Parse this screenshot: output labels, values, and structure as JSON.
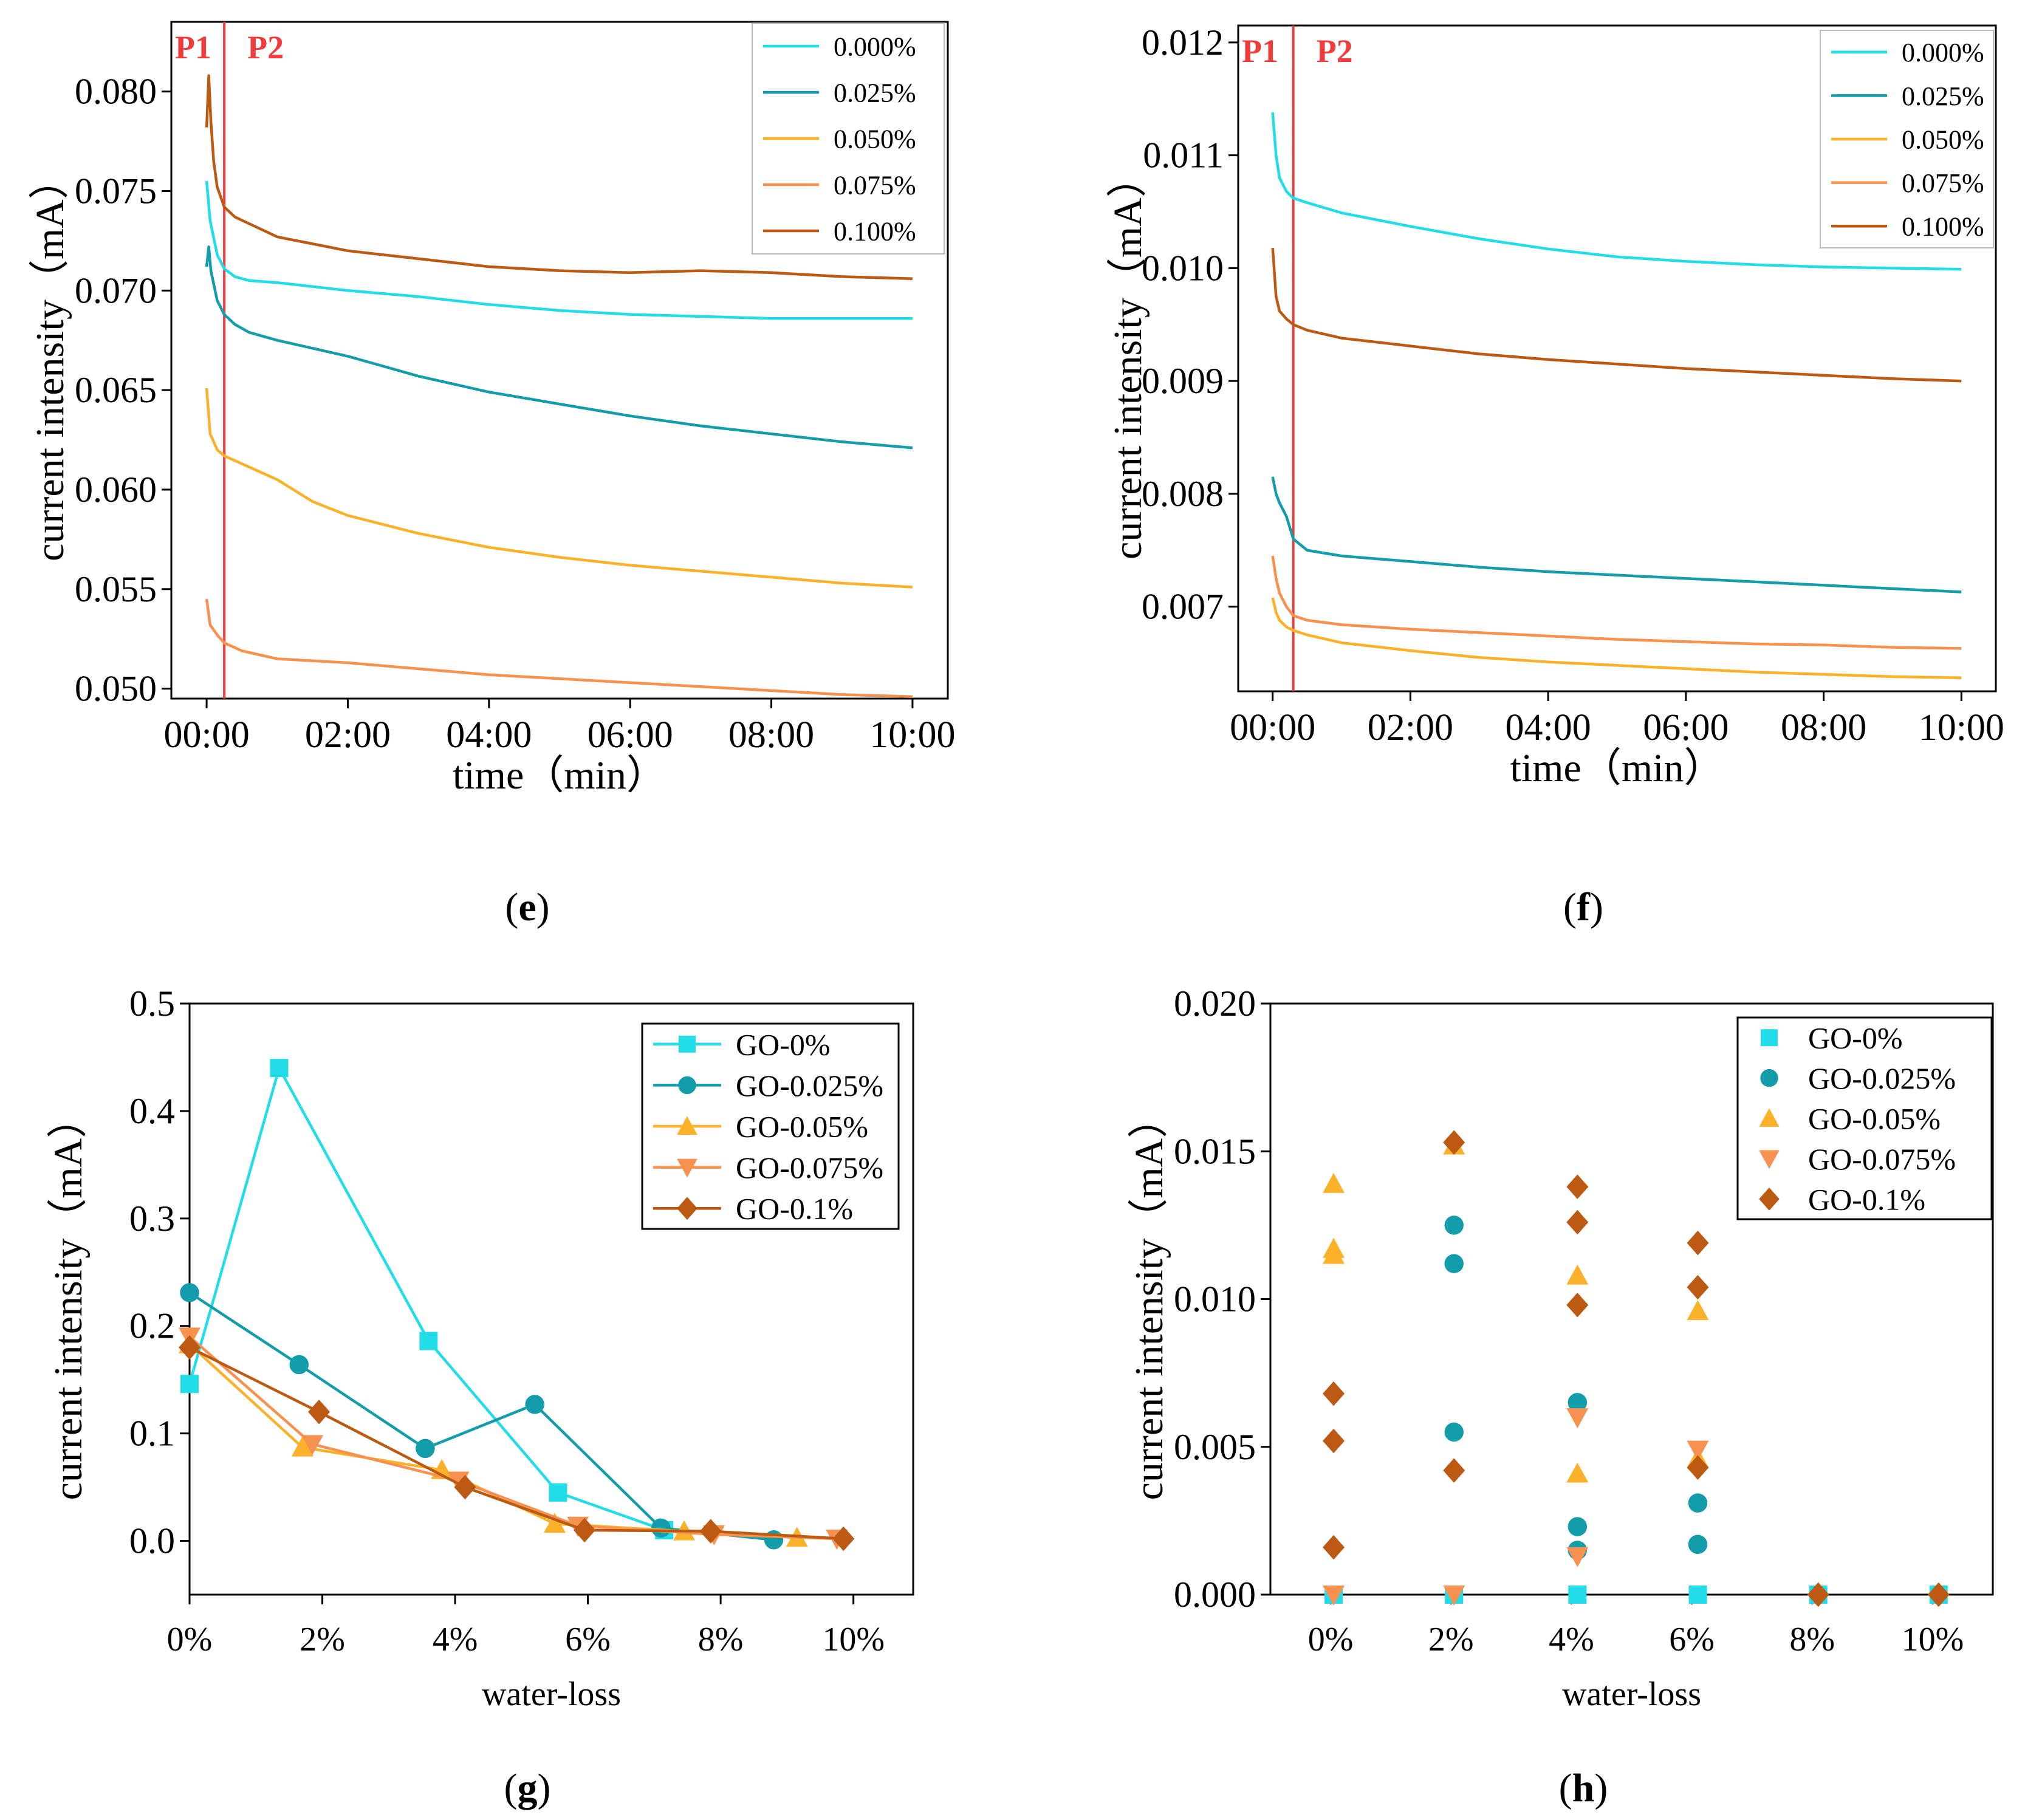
{
  "captions": {
    "e": "e",
    "f": "f",
    "g": "g",
    "h": "h"
  },
  "colors": {
    "c0": "#22DDE8",
    "c025": "#139CA9",
    "c05": "#FBB22A",
    "c075": "#F69150",
    "c1": "#BC5A13",
    "marker_line": "#EE3B3B"
  },
  "chart_data": [
    {
      "id": "e",
      "type": "line",
      "xlabel": "time（min）",
      "ylabel": "current intensity（mA）",
      "xlim": [
        -0.5,
        10.5
      ],
      "ylim": [
        0.0495,
        0.0835
      ],
      "xticks": [
        0,
        2,
        4,
        6,
        8,
        10
      ],
      "xtick_labels": [
        "00:00",
        "02:00",
        "04:00",
        "06:00",
        "08:00",
        "10:00"
      ],
      "yticks": [
        0.05,
        0.055,
        0.06,
        0.065,
        0.07,
        0.075,
        0.08
      ],
      "ytick_labels": [
        "0.050",
        "0.055",
        "0.060",
        "0.065",
        "0.070",
        "0.075",
        "0.080"
      ],
      "marker_x": 0.25,
      "marker_labels": [
        "P1",
        "P2"
      ],
      "legend_position": "top-right",
      "series": [
        {
          "name": "0.000%",
          "color": "#22DDE8",
          "x": [
            0,
            0.05,
            0.15,
            0.25,
            0.4,
            0.6,
            1,
            2,
            3,
            4,
            5,
            6,
            7,
            8,
            9,
            10
          ],
          "y": [
            0.0755,
            0.0735,
            0.0718,
            0.0711,
            0.0707,
            0.0705,
            0.0704,
            0.07,
            0.0697,
            0.0693,
            0.069,
            0.0688,
            0.0687,
            0.0686,
            0.0686,
            0.0686
          ]
        },
        {
          "name": "0.025%",
          "color": "#139CA9",
          "x": [
            0,
            0.03,
            0.06,
            0.15,
            0.25,
            0.4,
            0.6,
            1,
            2,
            3,
            4,
            5,
            6,
            7,
            8,
            9,
            10
          ],
          "y": [
            0.0712,
            0.0722,
            0.071,
            0.0695,
            0.0688,
            0.0683,
            0.0679,
            0.0675,
            0.0667,
            0.0657,
            0.0649,
            0.0643,
            0.0637,
            0.0632,
            0.0628,
            0.0624,
            0.0621
          ]
        },
        {
          "name": "0.050%",
          "color": "#FBB22A",
          "x": [
            0,
            0.05,
            0.15,
            0.25,
            0.5,
            1,
            1.5,
            2,
            3,
            4,
            5,
            6,
            7,
            8,
            9,
            10
          ],
          "y": [
            0.0651,
            0.0628,
            0.062,
            0.0617,
            0.0613,
            0.0605,
            0.0594,
            0.0587,
            0.0578,
            0.0571,
            0.0566,
            0.0562,
            0.0559,
            0.0556,
            0.0553,
            0.0551
          ]
        },
        {
          "name": "0.075%",
          "color": "#F69150",
          "x": [
            0,
            0.05,
            0.15,
            0.25,
            0.5,
            1,
            2,
            3,
            4,
            5,
            6,
            7,
            8,
            9,
            10
          ],
          "y": [
            0.0545,
            0.0532,
            0.0527,
            0.0523,
            0.0519,
            0.0515,
            0.0513,
            0.051,
            0.0507,
            0.0505,
            0.0503,
            0.0501,
            0.0499,
            0.0497,
            0.0496
          ]
        },
        {
          "name": "0.100%",
          "color": "#BC5A13",
          "x": [
            0,
            0.03,
            0.06,
            0.1,
            0.15,
            0.25,
            0.4,
            0.7,
            1,
            2,
            3,
            4,
            5,
            6,
            7,
            8,
            9,
            10
          ],
          "y": [
            0.0782,
            0.0808,
            0.0785,
            0.0765,
            0.0752,
            0.0742,
            0.0737,
            0.0732,
            0.0727,
            0.072,
            0.0716,
            0.0712,
            0.071,
            0.0709,
            0.071,
            0.0709,
            0.0707,
            0.0706
          ]
        }
      ]
    },
    {
      "id": "f",
      "type": "line",
      "xlabel": "time（min）",
      "ylabel": "current intensity（mA）",
      "xlim": [
        -0.5,
        10.5
      ],
      "ylim": [
        0.00625,
        0.01215
      ],
      "xticks": [
        0,
        2,
        4,
        6,
        8,
        10
      ],
      "xtick_labels": [
        "00:00",
        "02:00",
        "04:00",
        "06:00",
        "08:00",
        "10:00"
      ],
      "yticks": [
        0.007,
        0.008,
        0.009,
        0.01,
        0.011,
        0.012
      ],
      "ytick_labels": [
        "0.007",
        "0.008",
        "0.009",
        "0.010",
        "0.011",
        "0.012"
      ],
      "marker_x": 0.3,
      "marker_labels": [
        "P1",
        "P2"
      ],
      "legend_position": "top-right",
      "series": [
        {
          "name": "0.000%",
          "color": "#22DDE8",
          "x": [
            0,
            0.05,
            0.1,
            0.2,
            0.3,
            0.5,
            1,
            2,
            3,
            4,
            5,
            6,
            7,
            8,
            9,
            10
          ],
          "y": [
            0.01138,
            0.011,
            0.0108,
            0.01068,
            0.01062,
            0.01058,
            0.01049,
            0.01037,
            0.01026,
            0.01017,
            0.0101,
            0.01006,
            0.01003,
            0.01001,
            0.01,
            0.00999
          ]
        },
        {
          "name": "0.025%",
          "color": "#139CA9",
          "x": [
            0,
            0.05,
            0.1,
            0.2,
            0.3,
            0.5,
            1,
            2,
            3,
            4,
            5,
            6,
            7,
            8,
            9,
            10
          ],
          "y": [
            0.00815,
            0.008,
            0.00792,
            0.0078,
            0.0076,
            0.0075,
            0.00745,
            0.0074,
            0.00735,
            0.00731,
            0.00728,
            0.00725,
            0.00722,
            0.00719,
            0.00716,
            0.00713
          ]
        },
        {
          "name": "0.050%",
          "color": "#FBB22A",
          "x": [
            0,
            0.05,
            0.1,
            0.2,
            0.3,
            0.5,
            1,
            2,
            3,
            4,
            5,
            6,
            7,
            8,
            9,
            10
          ],
          "y": [
            0.00708,
            0.00695,
            0.00688,
            0.00682,
            0.00679,
            0.00675,
            0.00668,
            0.00661,
            0.00655,
            0.00651,
            0.00648,
            0.00645,
            0.00642,
            0.0064,
            0.00638,
            0.00637
          ]
        },
        {
          "name": "0.075%",
          "color": "#F69150",
          "x": [
            0,
            0.05,
            0.1,
            0.2,
            0.3,
            0.5,
            1,
            2,
            3,
            4,
            5,
            6,
            7,
            8,
            9,
            10
          ],
          "y": [
            0.00745,
            0.00725,
            0.00712,
            0.007,
            0.00692,
            0.00688,
            0.00684,
            0.0068,
            0.00677,
            0.00674,
            0.00671,
            0.00669,
            0.00667,
            0.00666,
            0.00664,
            0.00663
          ]
        },
        {
          "name": "0.100%",
          "color": "#BC5A13",
          "x": [
            0,
            0.05,
            0.1,
            0.2,
            0.3,
            0.5,
            1,
            2,
            3,
            4,
            5,
            6,
            7,
            8,
            9,
            10
          ],
          "y": [
            0.01018,
            0.00975,
            0.00962,
            0.00955,
            0.0095,
            0.00945,
            0.00938,
            0.00931,
            0.00924,
            0.00919,
            0.00915,
            0.00911,
            0.00908,
            0.00905,
            0.00902,
            0.009
          ]
        }
      ]
    },
    {
      "id": "g",
      "type": "line",
      "xlabel": "water-loss",
      "ylabel": "current intensity（mA）",
      "xlim": [
        0,
        10.9
      ],
      "ylim": [
        -0.05,
        0.5
      ],
      "xticks": [
        0,
        2,
        4,
        6,
        8,
        10
      ],
      "xtick_labels": [
        "0%",
        "2%",
        "4%",
        "6%",
        "8%",
        "10%"
      ],
      "yticks": [
        0.0,
        0.1,
        0.2,
        0.3,
        0.4,
        0.5
      ],
      "ytick_labels": [
        "0.0",
        "0.1",
        "0.2",
        "0.3",
        "0.4",
        "0.5"
      ],
      "legend_position": "top-right",
      "series": [
        {
          "name": "GO-0%",
          "color": "#22DDE8",
          "marker": "square",
          "x": [
            0.0,
            1.35,
            3.6,
            5.55,
            7.15
          ],
          "y": [
            0.146,
            0.44,
            0.186,
            0.045,
            0.01
          ]
        },
        {
          "name": "GO-0.025%",
          "color": "#139CA9",
          "marker": "circle",
          "x": [
            0.0,
            1.65,
            3.55,
            5.2,
            7.1,
            8.8
          ],
          "y": [
            0.231,
            0.164,
            0.086,
            0.127,
            0.012,
            0.001
          ]
        },
        {
          "name": "GO-0.05%",
          "color": "#FBB22A",
          "marker": "triangle-up",
          "x": [
            0.0,
            1.7,
            3.8,
            5.5,
            7.45,
            9.15
          ],
          "y": [
            0.183,
            0.087,
            0.066,
            0.016,
            0.009,
            0.003
          ]
        },
        {
          "name": "GO-0.075%",
          "color": "#F69150",
          "marker": "triangle-down",
          "x": [
            0.0,
            1.85,
            4.05,
            5.85,
            7.9,
            9.75
          ],
          "y": [
            0.19,
            0.09,
            0.056,
            0.014,
            0.006,
            0.002
          ]
        },
        {
          "name": "GO-0.1%",
          "color": "#BC5A13",
          "marker": "diamond",
          "x": [
            0.0,
            1.95,
            4.15,
            5.95,
            7.85,
            9.85
          ],
          "y": [
            0.18,
            0.12,
            0.05,
            0.01,
            0.009,
            0.002
          ]
        }
      ]
    },
    {
      "id": "h",
      "type": "scatter",
      "xlabel": "water-loss",
      "ylabel": "current intensity（mA）",
      "xlim": [
        -1.0,
        11.0
      ],
      "ylim": [
        0,
        0.02
      ],
      "xticks": [
        0,
        2,
        4,
        6,
        8,
        10
      ],
      "xtick_labels": [
        "0%",
        "2%",
        "4%",
        "6%",
        "8%",
        "10%"
      ],
      "yticks": [
        0.0,
        0.005,
        0.01,
        0.015,
        0.02
      ],
      "ytick_labels": [
        "0.000",
        "0.005",
        "0.010",
        "0.015",
        "0.020"
      ],
      "legend_position": "top-right",
      "series": [
        {
          "name": "GO-0%",
          "color": "#22DDE8",
          "marker": "square",
          "x": [
            0.05,
            2.05,
            4.1,
            6.1,
            8.1,
            10.1
          ],
          "y": [
            0.0,
            0.0,
            0.0,
            0.0,
            0.0,
            0.0
          ]
        },
        {
          "name": "GO-0.025%",
          "color": "#139CA9",
          "marker": "circle",
          "x": [
            2.05,
            2.05,
            2.05,
            4.1,
            4.1,
            4.1,
            6.1,
            6.1
          ],
          "y": [
            0.0125,
            0.0112,
            0.0055,
            0.0065,
            0.0023,
            0.0015,
            0.0031,
            0.0017
          ]
        },
        {
          "name": "GO-0.05%",
          "color": "#FBB22A",
          "marker": "triangle-up",
          "x": [
            0.05,
            0.05,
            0.05,
            2.05,
            4.1,
            4.1,
            6.1,
            6.1
          ],
          "y": [
            0.0139,
            0.0117,
            0.0115,
            0.0152,
            0.0108,
            0.0041,
            0.0096,
            0.0046
          ]
        },
        {
          "name": "GO-0.075%",
          "color": "#F69150",
          "marker": "triangle-down",
          "x": [
            4.1,
            4.1,
            6.1,
            0.05,
            2.05
          ],
          "y": [
            0.006,
            0.0013,
            0.0049,
            0.0,
            0.0
          ]
        },
        {
          "name": "GO-0.1%",
          "color": "#BC5A13",
          "marker": "diamond",
          "x": [
            0.05,
            0.05,
            0.05,
            2.05,
            2.05,
            4.1,
            4.1,
            4.1,
            6.1,
            6.1,
            6.1,
            8.1,
            10.1
          ],
          "y": [
            0.0068,
            0.0052,
            0.0016,
            0.0153,
            0.0042,
            0.0138,
            0.0126,
            0.0098,
            0.0119,
            0.0104,
            0.0043,
            0.0,
            0.0
          ]
        }
      ]
    }
  ]
}
